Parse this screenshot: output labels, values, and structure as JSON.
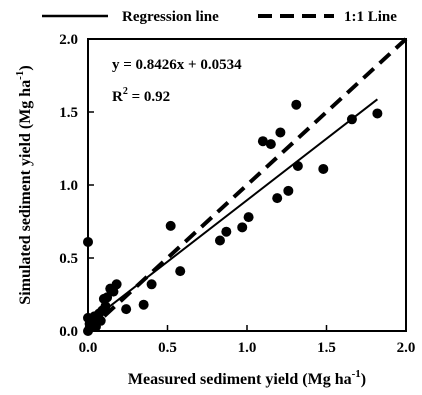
{
  "chart_data": {
    "type": "scatter",
    "title": "",
    "xlabel": "Measured sediment yield (Mg ha",
    "ylabel": "Simulated sediment yield (Mg ha",
    "unit_superscript": "-1",
    "unit_close": ")",
    "xlim": [
      0.0,
      2.0
    ],
    "ylim": [
      0.0,
      2.0
    ],
    "x_ticks": [
      "0.0",
      "0.5",
      "1.0",
      "1.5",
      "2.0"
    ],
    "y_ticks": [
      "0.0",
      "0.5",
      "1.0",
      "1.5",
      "2.0"
    ],
    "grid": false,
    "legend_position": "top",
    "legend": [
      {
        "name": "Regression line",
        "style": "solid"
      },
      {
        "name": "1:1 Line",
        "style": "dashed"
      }
    ],
    "annotations": {
      "equation": "y = 0.8426x + 0.0534",
      "r2_prefix": "R",
      "r2_exp": "2",
      "r2_value": " = 0.92"
    },
    "regression": {
      "slope": 0.8426,
      "intercept": 0.0534,
      "x_range": [
        0.0,
        1.82
      ]
    },
    "identity_line": {
      "x_range": [
        0.0,
        2.0
      ]
    },
    "points": [
      {
        "x": 0.0,
        "y": 0.61
      },
      {
        "x": 0.0,
        "y": 0.0
      },
      {
        "x": 0.01,
        "y": 0.02
      },
      {
        "x": 0.01,
        "y": 0.05
      },
      {
        "x": 0.0,
        "y": 0.09
      },
      {
        "x": 0.02,
        "y": 0.08
      },
      {
        "x": 0.03,
        "y": 0.05
      },
      {
        "x": 0.04,
        "y": 0.1
      },
      {
        "x": 0.05,
        "y": 0.03
      },
      {
        "x": 0.06,
        "y": 0.09
      },
      {
        "x": 0.07,
        "y": 0.12
      },
      {
        "x": 0.08,
        "y": 0.07
      },
      {
        "x": 0.09,
        "y": 0.14
      },
      {
        "x": 0.1,
        "y": 0.22
      },
      {
        "x": 0.11,
        "y": 0.17
      },
      {
        "x": 0.12,
        "y": 0.23
      },
      {
        "x": 0.14,
        "y": 0.29
      },
      {
        "x": 0.16,
        "y": 0.27
      },
      {
        "x": 0.18,
        "y": 0.32
      },
      {
        "x": 0.24,
        "y": 0.15
      },
      {
        "x": 0.35,
        "y": 0.18
      },
      {
        "x": 0.4,
        "y": 0.32
      },
      {
        "x": 0.52,
        "y": 0.72
      },
      {
        "x": 0.58,
        "y": 0.41
      },
      {
        "x": 0.83,
        "y": 0.62
      },
      {
        "x": 0.87,
        "y": 0.68
      },
      {
        "x": 0.97,
        "y": 0.71
      },
      {
        "x": 1.01,
        "y": 0.78
      },
      {
        "x": 1.1,
        "y": 1.3
      },
      {
        "x": 1.15,
        "y": 1.28
      },
      {
        "x": 1.19,
        "y": 0.91
      },
      {
        "x": 1.21,
        "y": 1.36
      },
      {
        "x": 1.26,
        "y": 0.96
      },
      {
        "x": 1.31,
        "y": 1.55
      },
      {
        "x": 1.32,
        "y": 1.13
      },
      {
        "x": 1.48,
        "y": 1.11
      },
      {
        "x": 1.66,
        "y": 1.45
      },
      {
        "x": 1.82,
        "y": 1.49
      }
    ]
  }
}
